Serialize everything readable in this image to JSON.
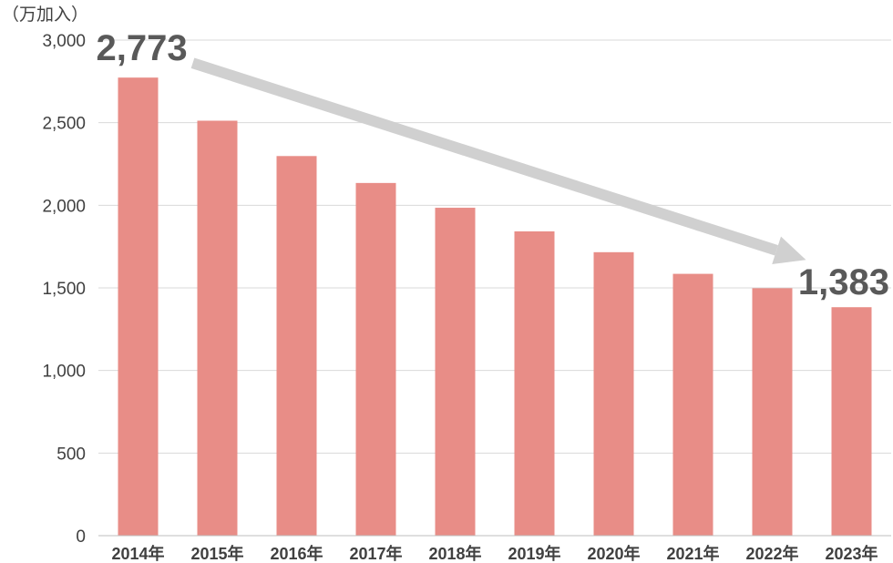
{
  "chart_data": {
    "type": "bar",
    "unit_label": "（万加入）",
    "categories": [
      "2014年",
      "2015年",
      "2016年",
      "2017年",
      "2018年",
      "2019年",
      "2020年",
      "2021年",
      "2022年",
      "2023年"
    ],
    "values": [
      2773,
      2512,
      2298,
      2135,
      1985,
      1842,
      1716,
      1585,
      1498,
      1383
    ],
    "ylim": [
      0,
      3000
    ],
    "yticks": [
      0,
      500,
      1000,
      1500,
      2000,
      2500,
      3000
    ],
    "ytick_labels": [
      "0",
      "500",
      "1,000",
      "1,500",
      "2,000",
      "2,500",
      "3,000"
    ],
    "bar_color": "#e88d87",
    "grid": true,
    "annotations": [
      {
        "text": "2,773",
        "category": "2014年"
      },
      {
        "text": "1,383",
        "category": "2023年"
      }
    ],
    "trend_arrow": {
      "from_category": "2014年",
      "to_category": "2023年",
      "color": "#d0d0d0"
    }
  }
}
